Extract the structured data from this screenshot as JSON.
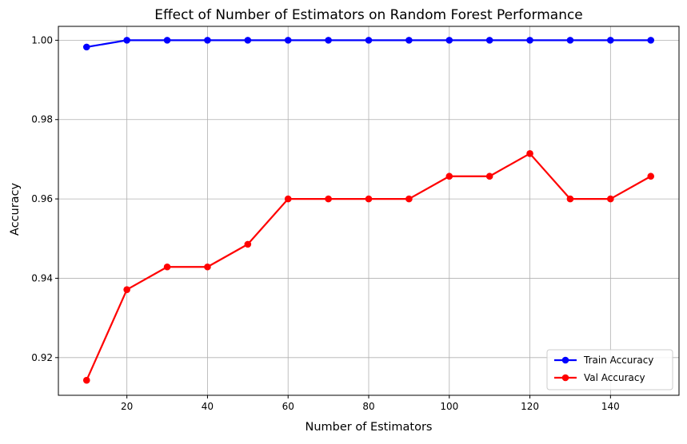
{
  "chart_data": {
    "type": "line",
    "title": "Effect of Number of Estimators on Random Forest Performance",
    "xlabel": "Number of Estimators",
    "ylabel": "Accuracy",
    "x": [
      10,
      20,
      30,
      40,
      50,
      60,
      70,
      80,
      90,
      100,
      110,
      120,
      130,
      140,
      150
    ],
    "xlim": [
      3,
      157
    ],
    "ylim": [
      0.9105,
      1.0035
    ],
    "xticks": [
      20,
      40,
      60,
      80,
      100,
      120,
      140
    ],
    "yticks": [
      0.92,
      0.94,
      0.96,
      0.98,
      1.0
    ],
    "ytick_labels": [
      "0.92",
      "0.94",
      "0.96",
      "0.98",
      "1.00"
    ],
    "grid": true,
    "legend_position": "lower-right",
    "series": [
      {
        "name": "Train Accuracy",
        "color": "#0000ff",
        "marker": "circle",
        "values": [
          0.99829,
          1.0,
          1.0,
          1.0,
          1.0,
          1.0,
          1.0,
          1.0,
          1.0,
          1.0,
          1.0,
          1.0,
          1.0,
          1.0,
          1.0
        ]
      },
      {
        "name": "Val Accuracy",
        "color": "#ff0000",
        "marker": "circle",
        "values": [
          0.91429,
          0.93714,
          0.94286,
          0.94286,
          0.94857,
          0.96,
          0.96,
          0.96,
          0.96,
          0.96571,
          0.96571,
          0.97143,
          0.96,
          0.96,
          0.96571
        ]
      }
    ]
  }
}
